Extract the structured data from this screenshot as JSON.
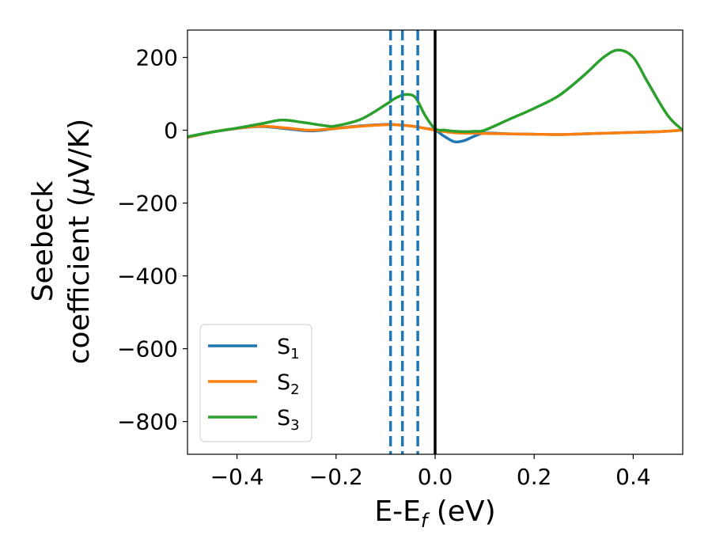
{
  "chart_data": {
    "type": "line",
    "xlabel": "E-E",
    "xlabel_sub": "f",
    "xlabel_unit": " (eV)",
    "ylabel_line1": "Seebeck",
    "ylabel_line2_pre": "coefficient  (",
    "ylabel_line2_mu": "μ",
    "ylabel_line2_post": "V/K)",
    "xlim": [
      -0.5,
      0.5
    ],
    "ylim": [
      -890,
      275
    ],
    "xticks": [
      -0.4,
      -0.2,
      0.0,
      0.2,
      0.4
    ],
    "xtick_labels": [
      "−0.4",
      "−0.2",
      "0.0",
      "0.2",
      "0.4"
    ],
    "yticks": [
      200,
      0,
      -200,
      -400,
      -600,
      -800
    ],
    "ytick_labels": [
      "200",
      "0",
      "−200",
      "−400",
      "−600",
      "−800"
    ],
    "grid": false,
    "legend_position": "lower-left",
    "vlines": [
      {
        "x": -0.09,
        "style": "dashed",
        "color": "#1f77b4"
      },
      {
        "x": -0.066,
        "style": "dashed",
        "color": "#1f77b4"
      },
      {
        "x": -0.035,
        "style": "dashed",
        "color": "#1f77b4"
      },
      {
        "x": 0.0,
        "style": "solid",
        "color": "#000000"
      }
    ],
    "series": [
      {
        "name": "S",
        "sub": "1",
        "color": "#1f77b4",
        "x": [
          -0.5,
          -0.45,
          -0.4,
          -0.35,
          -0.3,
          -0.25,
          -0.2,
          -0.15,
          -0.1,
          -0.08,
          -0.06,
          -0.04,
          -0.02,
          0.0,
          0.02,
          0.04,
          0.06,
          0.08,
          0.1,
          0.15,
          0.2,
          0.25,
          0.3,
          0.35,
          0.4,
          0.45,
          0.5
        ],
        "y": [
          -18,
          -5,
          5,
          10,
          4,
          -2,
          5,
          12,
          16,
          15,
          13,
          10,
          5,
          0,
          -18,
          -32,
          -28,
          -16,
          -8,
          -10,
          -11,
          -12,
          -10,
          -8,
          -6,
          -4,
          0
        ]
      },
      {
        "name": "S",
        "sub": "2",
        "color": "#ff7f0e",
        "x": [
          -0.5,
          -0.45,
          -0.4,
          -0.35,
          -0.3,
          -0.25,
          -0.2,
          -0.15,
          -0.1,
          -0.08,
          -0.06,
          -0.04,
          -0.02,
          0.0,
          0.02,
          0.04,
          0.06,
          0.08,
          0.1,
          0.15,
          0.2,
          0.25,
          0.3,
          0.35,
          0.4,
          0.45,
          0.5
        ],
        "y": [
          -20,
          -5,
          5,
          11,
          6,
          0,
          5,
          11,
          15,
          15,
          13,
          10,
          5,
          0,
          -4,
          -7,
          -8,
          -8,
          -9,
          -10,
          -11,
          -12,
          -10,
          -8,
          -6,
          -4,
          0
        ]
      },
      {
        "name": "S",
        "sub": "3",
        "color": "#2ca02c",
        "x": [
          -0.5,
          -0.45,
          -0.4,
          -0.35,
          -0.31,
          -0.27,
          -0.22,
          -0.2,
          -0.15,
          -0.1,
          -0.08,
          -0.06,
          -0.04,
          -0.02,
          0.0,
          0.02,
          0.04,
          0.06,
          0.08,
          0.1,
          0.15,
          0.2,
          0.25,
          0.3,
          0.34,
          0.37,
          0.4,
          0.43,
          0.47,
          0.5
        ],
        "y": [
          -18,
          -5,
          6,
          18,
          28,
          22,
          12,
          12,
          30,
          70,
          88,
          98,
          90,
          40,
          4,
          0,
          -3,
          -4,
          -3,
          0,
          30,
          60,
          95,
          150,
          200,
          220,
          200,
          130,
          40,
          0
        ]
      }
    ]
  }
}
